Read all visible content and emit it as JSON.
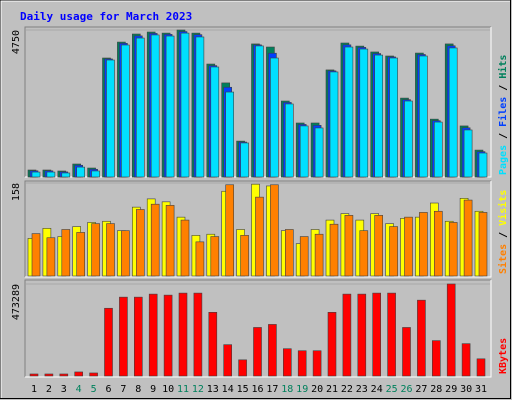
{
  "chart_data": [
    {
      "type": "bar",
      "title": "Daily usage for March 2023",
      "legend_separator": " / ",
      "ylim": [
        0,
        4750
      ],
      "yticks": [
        4750
      ],
      "series": [
        {
          "name": "Hits",
          "color": "#00805c",
          "values": [
            226,
            226,
            194,
            420,
            290,
            3845,
            4360,
            4620,
            4685,
            4650,
            4750,
            4650,
            3650,
            3040,
            1160,
            4300,
            4200,
            2455,
            1745,
            1745,
            3460,
            4330,
            4230,
            4040,
            3910,
            2550,
            4005,
            1870,
            4300,
            1650,
            870
          ]
        },
        {
          "name": "Files",
          "color": "#0040ff",
          "values": [
            200,
            200,
            165,
            380,
            250,
            3815,
            4320,
            4560,
            4640,
            4610,
            4700,
            4600,
            3600,
            2900,
            1130,
            4270,
            4000,
            2410,
            1700,
            1670,
            3430,
            4270,
            4190,
            3990,
            3880,
            2500,
            3960,
            1820,
            4240,
            1590,
            820
          ]
        },
        {
          "name": "Pages",
          "color": "#00e0ff",
          "values": [
            160,
            160,
            130,
            320,
            195,
            3780,
            4265,
            4490,
            4590,
            4555,
            4650,
            4525,
            3555,
            2745,
            1100,
            4235,
            3845,
            2360,
            1650,
            1585,
            3395,
            4200,
            4135,
            3940,
            3845,
            2455,
            3910,
            1775,
            4170,
            1520,
            775
          ]
        }
      ]
    },
    {
      "type": "bar",
      "legend_separator": " / ",
      "ylim": [
        0,
        158
      ],
      "yticks": [
        158
      ],
      "series": [
        {
          "name": "Visits",
          "color": "#ffff00",
          "values": [
            64,
            81,
            67,
            84,
            91,
            93,
            77,
            117,
            131,
            126,
            100,
            69,
            71,
            144,
            79,
            156,
            153,
            77,
            55,
            79,
            95,
            106,
            95,
            106,
            89,
            98,
            100,
            124,
            93,
            132,
            110
          ]
        },
        {
          "name": "Sites",
          "color": "#ff8000",
          "values": [
            72,
            65,
            79,
            74,
            89,
            89,
            77,
            113,
            122,
            120,
            95,
            58,
            67,
            155,
            69,
            134,
            155,
            79,
            67,
            71,
            88,
            103,
            77,
            103,
            84,
            100,
            108,
            110,
            91,
            129,
            108
          ]
        }
      ]
    },
    {
      "type": "bar",
      "ylim": [
        0,
        473289
      ],
      "yticks": [
        473289
      ],
      "categories": [
        "1",
        "2",
        "3",
        "4",
        "5",
        "6",
        "7",
        "8",
        "9",
        "10",
        "11",
        "12",
        "13",
        "14",
        "15",
        "16",
        "17",
        "18",
        "19",
        "20",
        "21",
        "22",
        "23",
        "24",
        "25",
        "26",
        "27",
        "28",
        "29",
        "30",
        "31"
      ],
      "label_colors": [
        "#000000",
        "#000000",
        "#000000",
        "#00805c",
        "#00805c",
        "#000000",
        "#000000",
        "#000000",
        "#000000",
        "#000000",
        "#00805c",
        "#00805c",
        "#000000",
        "#000000",
        "#000000",
        "#000000",
        "#000000",
        "#00805c",
        "#00805c",
        "#000000",
        "#000000",
        "#000000",
        "#000000",
        "#000000",
        "#00805c",
        "#00805c",
        "#000000",
        "#000000",
        "#000000",
        "#000000",
        "#000000"
      ],
      "series": [
        {
          "name": "KBytes",
          "color": "#ff0000",
          "values": [
            10400,
            10400,
            10400,
            20800,
            15600,
            348500,
            405700,
            405700,
            421300,
            416100,
            426500,
            426500,
            327700,
            161200,
            83200,
            249700,
            265300,
            140400,
            130000,
            130000,
            327700,
            421300,
            421300,
            426500,
            426500,
            249700,
            390100,
            182000,
            473289,
            166400,
            88400
          ]
        }
      ]
    }
  ]
}
